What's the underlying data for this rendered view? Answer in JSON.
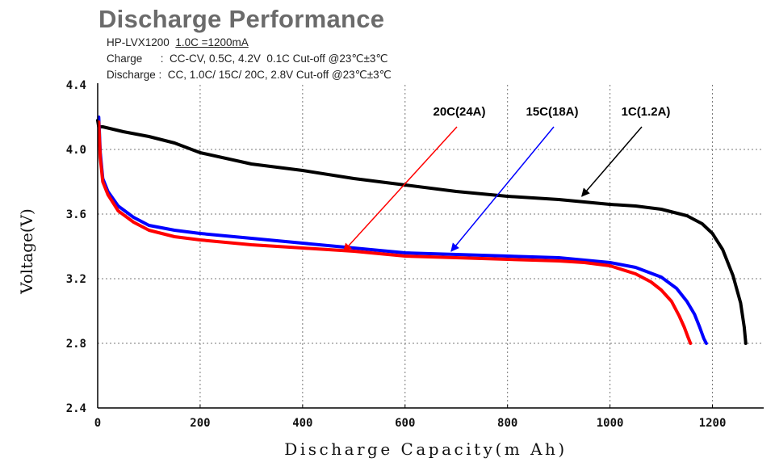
{
  "header": {
    "title": "Discharge Performance",
    "model_line_model": "HP-LVX1200",
    "model_line_rate": "1.0C =1200mA",
    "charge_line": "Charge      :  CC-CV, 0.5C, 4.2V  0.1C Cut-off @23℃±3℃",
    "discharge_line": "Discharge :  CC, 1.0C/ 15C/ 20C, 2.8V Cut-off @23℃±3℃"
  },
  "colors": {
    "series_20c": "#ff0000",
    "series_15c": "#0000ff",
    "series_1c": "#000000",
    "grid": "#777777"
  },
  "chart_data": {
    "type": "line",
    "title": "Discharge Performance",
    "xlabel": "Discharge Capacity(m Ah)",
    "ylabel": "Voltage(V)",
    "xlim": [
      0,
      1300
    ],
    "ylim": [
      2.4,
      4.4
    ],
    "xticks": [
      "0",
      "200",
      "400",
      "600",
      "800",
      "1000",
      "1200"
    ],
    "yticks": [
      "2.4",
      "2.8",
      "3.2",
      "3.6",
      "4.0",
      "4.4"
    ],
    "grid": "dashed",
    "series": [
      {
        "name": "1C(1.2A)",
        "color": "#000000",
        "x": [
          0,
          2,
          10,
          50,
          100,
          150,
          200,
          300,
          400,
          500,
          600,
          700,
          800,
          900,
          1000,
          1050,
          1100,
          1150,
          1180,
          1200,
          1220,
          1240,
          1255,
          1262,
          1265
        ],
        "y": [
          4.18,
          4.14,
          4.14,
          4.11,
          4.08,
          4.04,
          3.98,
          3.91,
          3.87,
          3.82,
          3.78,
          3.74,
          3.71,
          3.69,
          3.66,
          3.65,
          3.63,
          3.59,
          3.54,
          3.48,
          3.38,
          3.22,
          3.05,
          2.9,
          2.8
        ]
      },
      {
        "name": "15C(18A)",
        "color": "#0000ff",
        "x": [
          2,
          5,
          10,
          20,
          40,
          70,
          100,
          150,
          200,
          300,
          400,
          500,
          600,
          700,
          800,
          900,
          1000,
          1050,
          1100,
          1130,
          1150,
          1165,
          1175,
          1183,
          1188
        ],
        "y": [
          4.2,
          3.98,
          3.82,
          3.74,
          3.65,
          3.58,
          3.53,
          3.5,
          3.48,
          3.45,
          3.42,
          3.39,
          3.36,
          3.35,
          3.34,
          3.33,
          3.3,
          3.27,
          3.21,
          3.14,
          3.06,
          2.98,
          2.9,
          2.83,
          2.8
        ]
      },
      {
        "name": "20C(24A)",
        "color": "#ff0000",
        "x": [
          2,
          5,
          10,
          20,
          40,
          70,
          100,
          150,
          200,
          300,
          400,
          500,
          600,
          700,
          800,
          900,
          950,
          1000,
          1050,
          1080,
          1100,
          1120,
          1135,
          1145,
          1152,
          1157
        ],
        "y": [
          4.17,
          3.95,
          3.8,
          3.72,
          3.62,
          3.55,
          3.5,
          3.46,
          3.44,
          3.41,
          3.39,
          3.37,
          3.34,
          3.33,
          3.32,
          3.31,
          3.3,
          3.28,
          3.23,
          3.18,
          3.13,
          3.06,
          2.97,
          2.9,
          2.84,
          2.8
        ]
      }
    ],
    "annotations": [
      {
        "text": "20C(24A)",
        "series": "20C(24A)",
        "points_to": [
          480,
          3.37
        ]
      },
      {
        "text": "15C(18A)",
        "series": "15C(18A)",
        "points_to": [
          690,
          3.37
        ]
      },
      {
        "text": "1C(1.2A)",
        "series": "1C(1.2A)",
        "points_to": [
          945,
          3.71
        ]
      }
    ]
  }
}
